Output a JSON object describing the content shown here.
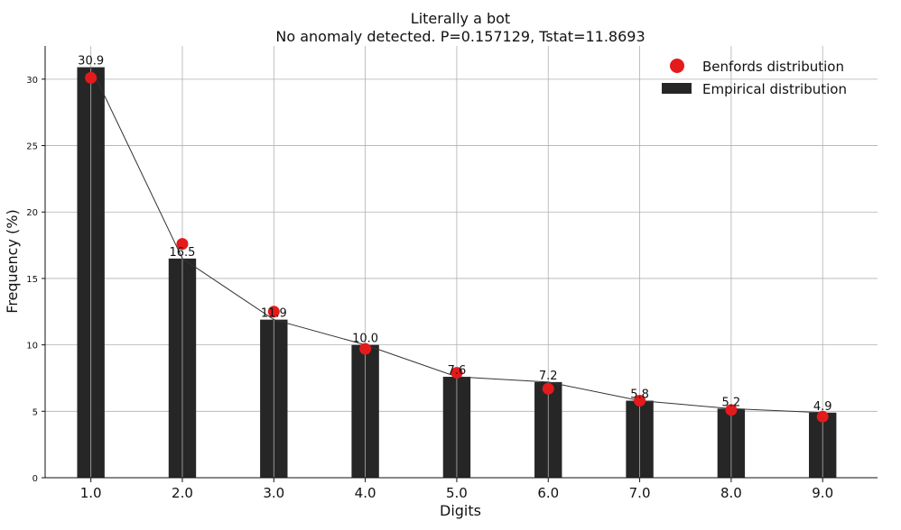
{
  "chart_data": {
    "type": "bar",
    "title": "Literally a bot",
    "subtitle": "No anomaly detected. P=0.157129, Tstat=11.8693",
    "xlabel": "Digits",
    "ylabel": "Frequency (%)",
    "categories": [
      "1.0",
      "2.0",
      "3.0",
      "4.0",
      "5.0",
      "6.0",
      "7.0",
      "8.0",
      "9.0"
    ],
    "x": [
      1,
      2,
      3,
      4,
      5,
      6,
      7,
      8,
      9
    ],
    "xlim": [
      0.5,
      9.6
    ],
    "ylim": [
      0,
      32.5
    ],
    "yticks": [
      0,
      5,
      10,
      15,
      20,
      25,
      30
    ],
    "grid": true,
    "legend_position": "top-right",
    "series": [
      {
        "name": "Empirical distribution",
        "kind": "bar",
        "color": "#262626",
        "values": [
          30.9,
          16.5,
          11.9,
          10.0,
          7.6,
          7.2,
          5.8,
          5.2,
          4.9
        ],
        "labels": [
          "30.9",
          "16.5",
          "11.9",
          "10.0",
          "7.6",
          "7.2",
          "5.8",
          "5.2",
          "4.9"
        ]
      },
      {
        "name": "Benfords distribution",
        "kind": "scatter",
        "color": "#e41a1c",
        "values": [
          30.1,
          17.6,
          12.5,
          9.7,
          7.9,
          6.7,
          5.8,
          5.1,
          4.6
        ]
      }
    ],
    "line_color": "#333333"
  }
}
